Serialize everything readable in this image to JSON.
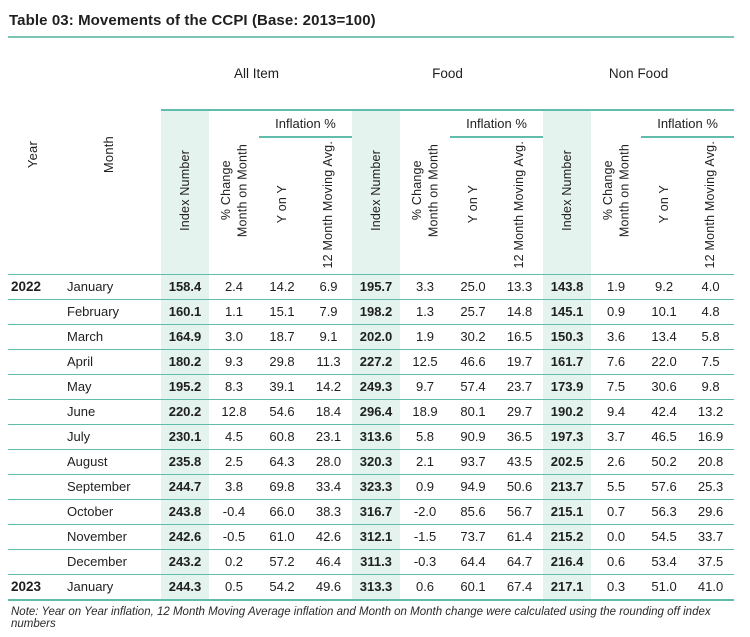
{
  "title": "Table 03: Movements of the CCPI (Base: 2013=100)",
  "note": "Note: Year on Year inflation, 12 Month Moving Average inflation and Month on Month change were calculated using the rounding off index numbers",
  "colors": {
    "teal": "#62bcab",
    "teal_light": "#7cc5b5",
    "mint": "#e4f3ee",
    "ink": "#1f1f1f"
  },
  "header": {
    "year": "Year",
    "month": "Month",
    "groups": [
      "All Item",
      "Food",
      "Non Food"
    ],
    "inflation": "Inflation %",
    "sub": {
      "index": "Index Number",
      "mom": "% Change\nMonth on Month",
      "yony": "Y on Y",
      "avg": "12 Month Moving Avg."
    }
  },
  "rows": [
    {
      "year": "2022",
      "month": "January",
      "all": [
        "158.4",
        "2.4",
        "14.2",
        "6.9"
      ],
      "food": [
        "195.7",
        "3.3",
        "25.0",
        "13.3"
      ],
      "nonfood": [
        "143.8",
        "1.9",
        "9.2",
        "4.0"
      ]
    },
    {
      "year": "",
      "month": "February",
      "all": [
        "160.1",
        "1.1",
        "15.1",
        "7.9"
      ],
      "food": [
        "198.2",
        "1.3",
        "25.7",
        "14.8"
      ],
      "nonfood": [
        "145.1",
        "0.9",
        "10.1",
        "4.8"
      ]
    },
    {
      "year": "",
      "month": "March",
      "all": [
        "164.9",
        "3.0",
        "18.7",
        "9.1"
      ],
      "food": [
        "202.0",
        "1.9",
        "30.2",
        "16.5"
      ],
      "nonfood": [
        "150.3",
        "3.6",
        "13.4",
        "5.8"
      ]
    },
    {
      "year": "",
      "month": "April",
      "all": [
        "180.2",
        "9.3",
        "29.8",
        "11.3"
      ],
      "food": [
        "227.2",
        "12.5",
        "46.6",
        "19.7"
      ],
      "nonfood": [
        "161.7",
        "7.6",
        "22.0",
        "7.5"
      ]
    },
    {
      "year": "",
      "month": "May",
      "all": [
        "195.2",
        "8.3",
        "39.1",
        "14.2"
      ],
      "food": [
        "249.3",
        "9.7",
        "57.4",
        "23.7"
      ],
      "nonfood": [
        "173.9",
        "7.5",
        "30.6",
        "9.8"
      ]
    },
    {
      "year": "",
      "month": "June",
      "all": [
        "220.2",
        "12.8",
        "54.6",
        "18.4"
      ],
      "food": [
        "296.4",
        "18.9",
        "80.1",
        "29.7"
      ],
      "nonfood": [
        "190.2",
        "9.4",
        "42.4",
        "13.2"
      ]
    },
    {
      "year": "",
      "month": "July",
      "all": [
        "230.1",
        "4.5",
        "60.8",
        "23.1"
      ],
      "food": [
        "313.6",
        "5.8",
        "90.9",
        "36.5"
      ],
      "nonfood": [
        "197.3",
        "3.7",
        "46.5",
        "16.9"
      ]
    },
    {
      "year": "",
      "month": "August",
      "all": [
        "235.8",
        "2.5",
        "64.3",
        "28.0"
      ],
      "food": [
        "320.3",
        "2.1",
        "93.7",
        "43.5"
      ],
      "nonfood": [
        "202.5",
        "2.6",
        "50.2",
        "20.8"
      ]
    },
    {
      "year": "",
      "month": "September",
      "all": [
        "244.7",
        "3.8",
        "69.8",
        "33.4"
      ],
      "food": [
        "323.3",
        "0.9",
        "94.9",
        "50.6"
      ],
      "nonfood": [
        "213.7",
        "5.5",
        "57.6",
        "25.3"
      ]
    },
    {
      "year": "",
      "month": "October",
      "all": [
        "243.8",
        "-0.4",
        "66.0",
        "38.3"
      ],
      "food": [
        "316.7",
        "-2.0",
        "85.6",
        "56.7"
      ],
      "nonfood": [
        "215.1",
        "0.7",
        "56.3",
        "29.6"
      ]
    },
    {
      "year": "",
      "month": "November",
      "all": [
        "242.6",
        "-0.5",
        "61.0",
        "42.6"
      ],
      "food": [
        "312.1",
        "-1.5",
        "73.7",
        "61.4"
      ],
      "nonfood": [
        "215.2",
        "0.0",
        "54.5",
        "33.7"
      ]
    },
    {
      "year": "",
      "month": "December",
      "all": [
        "243.2",
        "0.2",
        "57.2",
        "46.4"
      ],
      "food": [
        "311.3",
        "-0.3",
        "64.4",
        "64.7"
      ],
      "nonfood": [
        "216.4",
        "0.6",
        "53.4",
        "37.5"
      ]
    },
    {
      "year": "2023",
      "month": "January",
      "all": [
        "244.3",
        "0.5",
        "54.2",
        "49.6"
      ],
      "food": [
        "313.3",
        "0.6",
        "60.1",
        "67.4"
      ],
      "nonfood": [
        "217.1",
        "0.3",
        "51.0",
        "41.0"
      ]
    }
  ]
}
